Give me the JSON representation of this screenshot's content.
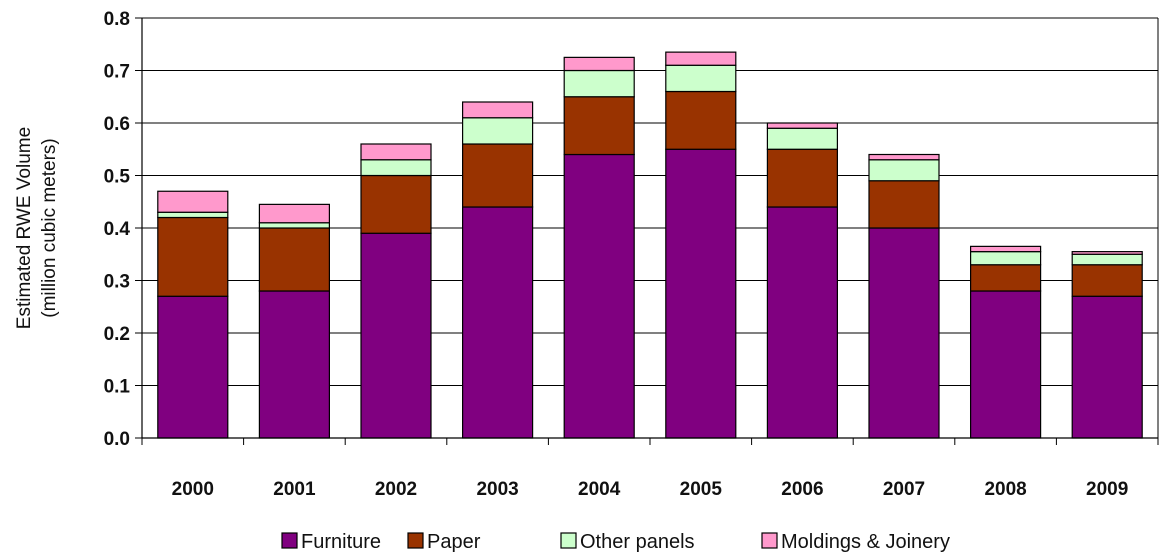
{
  "chart_data": {
    "type": "bar",
    "stacked": true,
    "categories": [
      "2000",
      "2001",
      "2002",
      "2003",
      "2004",
      "2005",
      "2006",
      "2007",
      "2008",
      "2009"
    ],
    "series": [
      {
        "name": "Furniture",
        "color": "#800080",
        "values": [
          0.27,
          0.28,
          0.39,
          0.44,
          0.54,
          0.55,
          0.44,
          0.4,
          0.28,
          0.27
        ]
      },
      {
        "name": "Paper",
        "color": "#993300",
        "values": [
          0.15,
          0.12,
          0.11,
          0.12,
          0.11,
          0.11,
          0.11,
          0.09,
          0.05,
          0.06
        ]
      },
      {
        "name": "Other panels",
        "color": "#CCFFCC",
        "values": [
          0.01,
          0.01,
          0.03,
          0.05,
          0.05,
          0.05,
          0.04,
          0.04,
          0.025,
          0.02
        ]
      },
      {
        "name": "Moldings & Joinery",
        "color": "#FF99CC",
        "values": [
          0.04,
          0.035,
          0.03,
          0.03,
          0.025,
          0.025,
          0.01,
          0.01,
          0.01,
          0.005
        ]
      }
    ],
    "ylabel_line1": "Estimated RWE Volume",
    "ylabel_line2": "(million cubic meters)",
    "xlabel": "",
    "ylim": [
      0,
      0.8
    ],
    "yticks": [
      "0.0",
      "0.1",
      "0.2",
      "0.3",
      "0.4",
      "0.5",
      "0.6",
      "0.7",
      "0.8"
    ],
    "grid": true,
    "legend_position": "bottom"
  }
}
